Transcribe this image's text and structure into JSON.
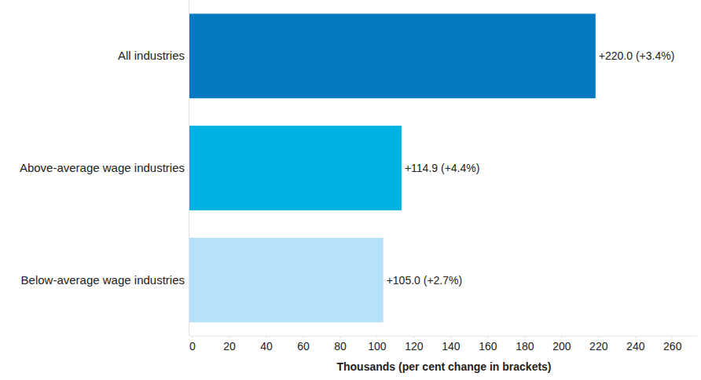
{
  "chart_data": {
    "type": "bar",
    "orientation": "horizontal",
    "categories": [
      "All industries",
      "Above-average wage industries",
      "Below-average wage industries"
    ],
    "values": [
      220.0,
      114.9,
      105.0
    ],
    "value_labels": [
      "+220.0 (+3.4%)",
      "+114.9 (+4.4%)",
      "+105.0 (+2.7%)"
    ],
    "colors": [
      "#0579c1",
      "#00b2e3",
      "#b5e2f9"
    ],
    "x_label": "Thousands (per cent change in brackets)",
    "xlim": [
      0,
      275
    ],
    "xticks": [
      0,
      20,
      40,
      60,
      80,
      100,
      120,
      140,
      160,
      180,
      200,
      220,
      240,
      260
    ],
    "grid": false,
    "data_labels": true
  }
}
